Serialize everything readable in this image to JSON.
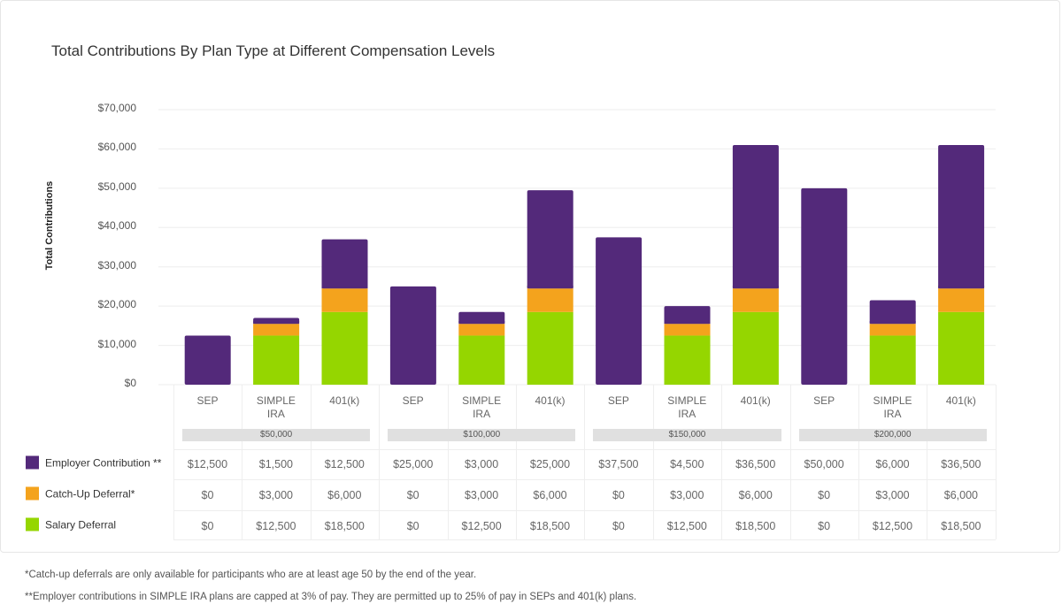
{
  "colors": {
    "employer": "#53297a",
    "catchup": "#f4a31d",
    "salary": "#95d600",
    "grid": "#eeeeee",
    "band": "#e0e0e0"
  },
  "chart_data": {
    "type": "bar",
    "stacked": true,
    "title": "Total Contributions By Plan Type at Different Compensation Levels",
    "xlabel": "",
    "ylabel": "Total Contributions",
    "ylim": [
      0,
      70000
    ],
    "yticks": [
      "$0",
      "$10,000",
      "$20,000",
      "$30,000",
      "$40,000",
      "$50,000",
      "$60,000",
      "$70,000"
    ],
    "ytick_values": [
      0,
      10000,
      20000,
      30000,
      40000,
      50000,
      60000,
      70000
    ],
    "grid": true,
    "groups": [
      {
        "label": "$50,000",
        "categories": [
          "SEP",
          "SIMPLE IRA",
          "401(k)"
        ]
      },
      {
        "label": "$100,000",
        "categories": [
          "SEP",
          "SIMPLE IRA",
          "401(k)"
        ]
      },
      {
        "label": "$150,000",
        "categories": [
          "SEP",
          "SIMPLE IRA",
          "401(k)"
        ]
      },
      {
        "label": "$200,000",
        "categories": [
          "SEP",
          "SIMPLE IRA",
          "401(k)"
        ]
      }
    ],
    "categories": [
      "SEP",
      "SIMPLE IRA",
      "401(k)",
      "SEP",
      "SIMPLE IRA",
      "401(k)",
      "SEP",
      "SIMPLE IRA",
      "401(k)",
      "SEP",
      "SIMPLE IRA",
      "401(k)"
    ],
    "series": [
      {
        "name": "Salary Deferral",
        "key": "salary",
        "values": [
          0,
          12500,
          18500,
          0,
          12500,
          18500,
          0,
          12500,
          18500,
          0,
          12500,
          18500
        ]
      },
      {
        "name": "Catch-Up Deferral*",
        "key": "catchup",
        "values": [
          0,
          3000,
          6000,
          0,
          3000,
          6000,
          0,
          3000,
          6000,
          0,
          3000,
          6000
        ]
      },
      {
        "name": "Employer Contribution **",
        "key": "employer",
        "values": [
          12500,
          1500,
          12500,
          25000,
          3000,
          25000,
          37500,
          4500,
          36500,
          50000,
          6000,
          36500
        ]
      }
    ],
    "legend_placement": "left-of-table"
  },
  "table": {
    "col_headers": [
      [
        "SEP"
      ],
      [
        "SIMPLE",
        "IRA"
      ],
      [
        "401(k)"
      ],
      [
        "SEP"
      ],
      [
        "SIMPLE",
        "IRA"
      ],
      [
        "401(k)"
      ],
      [
        "SEP"
      ],
      [
        "SIMPLE",
        "IRA"
      ],
      [
        "401(k)"
      ],
      [
        "SEP"
      ],
      [
        "SIMPLE",
        "IRA"
      ],
      [
        "401(k)"
      ]
    ],
    "group_labels": [
      "$50,000",
      "$100,000",
      "$150,000",
      "$200,000"
    ],
    "rows": [
      {
        "label": "Employer Contribution **",
        "key": "employer",
        "cells": [
          "$12,500",
          "$1,500",
          "$12,500",
          "$25,000",
          "$3,000",
          "$25,000",
          "$37,500",
          "$4,500",
          "$36,500",
          "$50,000",
          "$6,000",
          "$36,500"
        ]
      },
      {
        "label": "Catch-Up Deferral*",
        "key": "catchup",
        "cells": [
          "$0",
          "$3,000",
          "$6,000",
          "$0",
          "$3,000",
          "$6,000",
          "$0",
          "$3,000",
          "$6,000",
          "$0",
          "$3,000",
          "$6,000"
        ]
      },
      {
        "label": "Salary Deferral",
        "key": "salary",
        "cells": [
          "$0",
          "$12,500",
          "$18,500",
          "$0",
          "$12,500",
          "$18,500",
          "$0",
          "$12,500",
          "$18,500",
          "$0",
          "$12,500",
          "$18,500"
        ]
      }
    ]
  },
  "footnotes": [
    "*Catch-up deferrals are only available for participants who are at least age 50 by the end of the year.",
    "**Employer contributions in SIMPLE IRA plans are capped at 3% of pay.  They are permitted up to 25% of pay in SEPs and 401(k) plans."
  ]
}
